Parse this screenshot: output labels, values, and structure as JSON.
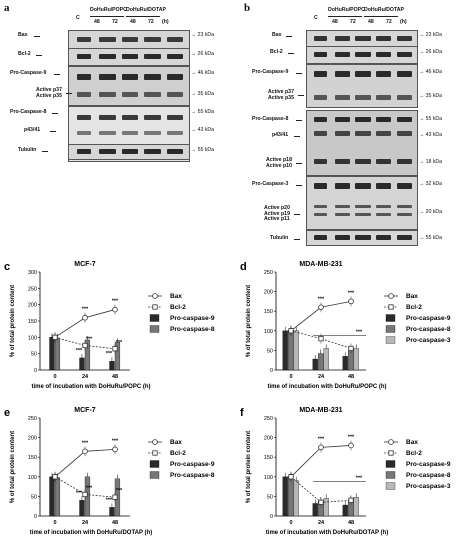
{
  "panel_a": {
    "letter": "a",
    "header": {
      "ctrl": "C",
      "group1": "DoHuRu/POPC",
      "group2": "DoHuRu/DOTAP",
      "t1": "48",
      "t2": "72",
      "t3": "48",
      "t4": "72",
      "unit": "(h)"
    },
    "rows": [
      {
        "label": "Bax",
        "mw": "23 kDa"
      },
      {
        "label": "Bcl-2",
        "mw": "26 kDa"
      },
      {
        "label": "Pro-Caspase-9",
        "mw": "46 kDa"
      },
      {
        "label": "Active p37\nActive p35",
        "mw": "35 kDa"
      },
      {
        "label": "Pro-Caspase-8",
        "mw": "55 kDa"
      },
      {
        "label": "p43/41",
        "mw": "43 kDa"
      },
      {
        "label": "Tubulin",
        "mw": "55 kDa"
      }
    ]
  },
  "panel_b": {
    "letter": "b",
    "header": {
      "ctrl": "C",
      "group1": "DoHuRu/POPC",
      "group2": "DoHuRu/DOTAP",
      "t1": "48",
      "t2": "72",
      "t3": "48",
      "t4": "72",
      "unit": "(h)"
    },
    "rows": [
      {
        "label": "Bax",
        "mw": "23 kDa"
      },
      {
        "label": "Bcl-2",
        "mw": "26 kDa"
      },
      {
        "label": "Pro-Caspase-9",
        "mw": "46 kDa"
      },
      {
        "label": "Active p37\nActive p35",
        "mw": "35 kDa"
      },
      {
        "label": "Pro-Caspase-8",
        "mw": "55 kDa"
      },
      {
        "label": "p43/41",
        "mw": "43 kDa"
      },
      {
        "label": "Active p18\nActive p10",
        "mw": "18 kDa"
      },
      {
        "label": "Pro-Caspase-3",
        "mw": "32 kDa"
      },
      {
        "label": "Active p20\nActive p19\nActive p11",
        "mw": "20 kDa"
      },
      {
        "label": "Tubulin",
        "mw": "55 kDa"
      }
    ]
  },
  "chart_data": [
    {
      "letter": "c",
      "type": "bar",
      "title": "MCF-7",
      "xlabel": "time of incubation with DoHuRu/POPC (h)",
      "ylabel": "% of total protein content",
      "ylim": [
        0,
        300
      ],
      "yticks": [
        0,
        50,
        100,
        150,
        200,
        250,
        300
      ],
      "categories": [
        "0",
        "24",
        "48"
      ],
      "series": [
        {
          "name": "Bax",
          "kind": "line",
          "marker": "open-circle",
          "values": [
            100,
            160,
            185
          ]
        },
        {
          "name": "Bcl-2",
          "kind": "line",
          "marker": "open-square",
          "dashed": true,
          "values": [
            100,
            75,
            65
          ]
        },
        {
          "name": "Pro-caspase-9",
          "kind": "bar",
          "color": "#2a2a2a",
          "values": [
            100,
            37,
            27
          ]
        },
        {
          "name": "Pro-caspase-8",
          "kind": "bar",
          "color": "#777777",
          "values": [
            98,
            92,
            85
          ]
        }
      ],
      "annotations": [
        "***",
        "***",
        "***",
        "***",
        "***",
        "***"
      ]
    },
    {
      "letter": "d",
      "type": "bar",
      "title": "MDA-MB-231",
      "xlabel": "time of incubation with DoHuRu/POPC (h)",
      "ylabel": "% of total protein content",
      "ylim": [
        0,
        250
      ],
      "yticks": [
        0,
        50,
        100,
        150,
        200,
        250
      ],
      "categories": [
        "0",
        "24",
        "48"
      ],
      "series": [
        {
          "name": "Bax",
          "kind": "line",
          "marker": "open-circle",
          "values": [
            100,
            160,
            175
          ]
        },
        {
          "name": "Bcl-2",
          "kind": "line",
          "marker": "open-square",
          "dashed": true,
          "values": [
            100,
            80,
            55
          ]
        },
        {
          "name": "Pro-caspase-9",
          "kind": "bar",
          "color": "#2a2a2a",
          "values": [
            100,
            28,
            35
          ]
        },
        {
          "name": "Pro-caspase-8",
          "kind": "bar",
          "color": "#777777",
          "values": [
            100,
            42,
            50
          ]
        },
        {
          "name": "Pro-caspase-3",
          "kind": "bar",
          "color": "#b8b8b8",
          "values": [
            100,
            55,
            55
          ]
        }
      ],
      "annotations": [
        "***",
        "***",
        "***"
      ]
    },
    {
      "letter": "e",
      "type": "bar",
      "title": "MCF-7",
      "xlabel": "time of incubation with DoHuRu/DOTAP (h)",
      "ylabel": "% of total protein content",
      "ylim": [
        0,
        250
      ],
      "yticks": [
        0,
        50,
        100,
        150,
        200,
        250
      ],
      "categories": [
        "0",
        "24",
        "48"
      ],
      "series": [
        {
          "name": "Bax",
          "kind": "line",
          "marker": "open-circle",
          "values": [
            100,
            165,
            170
          ]
        },
        {
          "name": "Bcl-2",
          "kind": "line",
          "marker": "open-square",
          "dashed": true,
          "values": [
            100,
            55,
            48
          ]
        },
        {
          "name": "Pro-caspase-9",
          "kind": "bar",
          "color": "#2a2a2a",
          "values": [
            100,
            40,
            22
          ]
        },
        {
          "name": "Pro-caspase-8",
          "kind": "bar",
          "color": "#777777",
          "values": [
            98,
            100,
            95
          ]
        }
      ],
      "annotations": [
        "***",
        "***",
        "***",
        "***",
        "***",
        "***"
      ]
    },
    {
      "letter": "f",
      "type": "bar",
      "title": "MDA-MB-231",
      "xlabel": "time of incubation with DoHuRu/DOTAP (h)",
      "ylabel": "% of total protein content",
      "ylim": [
        0,
        250
      ],
      "yticks": [
        0,
        50,
        100,
        150,
        200,
        250
      ],
      "categories": [
        "0",
        "24",
        "48"
      ],
      "series": [
        {
          "name": "Bax",
          "kind": "line",
          "marker": "open-circle",
          "values": [
            100,
            175,
            180
          ]
        },
        {
          "name": "Bcl-2",
          "kind": "line",
          "marker": "open-square",
          "dashed": true,
          "values": [
            100,
            35,
            40
          ]
        },
        {
          "name": "Pro-caspase-9",
          "kind": "bar",
          "color": "#2a2a2a",
          "values": [
            100,
            32,
            28
          ]
        },
        {
          "name": "Pro-caspase-8",
          "kind": "bar",
          "color": "#777777",
          "values": [
            98,
            38,
            40
          ]
        },
        {
          "name": "Pro-caspase-3",
          "kind": "bar",
          "color": "#b8b8b8",
          "values": [
            90,
            45,
            48
          ]
        }
      ],
      "annotations": [
        "***",
        "***",
        "***"
      ]
    }
  ]
}
